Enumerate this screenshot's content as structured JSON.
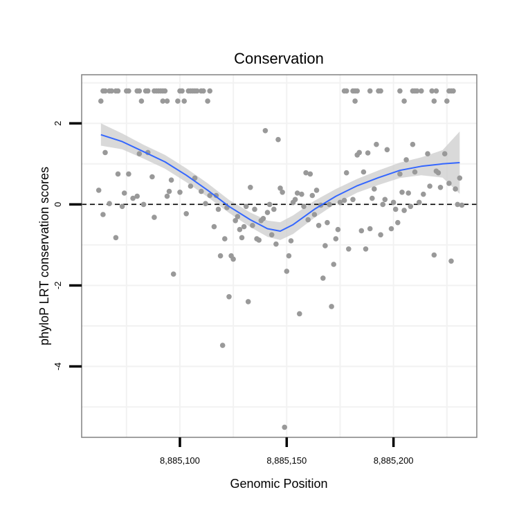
{
  "colors": {
    "points": "#999999",
    "smooth_line": "#3366FF",
    "ribbon": "#CCCCCC",
    "grid": "#F2F2F2",
    "panel_border": "#808080",
    "reference_line": "#000000"
  },
  "chart_data": {
    "type": "scatter",
    "title": "Conservation",
    "xlabel": "Genomic Position",
    "ylabel": "phyloP LRT conservation scores",
    "xlim": [
      8885054,
      8885239
    ],
    "ylim": [
      -5.75,
      3.2
    ],
    "x_ticks": [
      {
        "value": 8885100,
        "label": "8,885,100"
      },
      {
        "value": 8885150,
        "label": "8,885,150"
      },
      {
        "value": 8885200,
        "label": "8,885,200"
      }
    ],
    "y_ticks": [
      {
        "value": 2,
        "label": "2"
      },
      {
        "value": 0,
        "label": "0"
      },
      {
        "value": -2,
        "label": "-2"
      },
      {
        "value": -4,
        "label": "-4"
      }
    ],
    "reference_line": {
      "y": 0,
      "style": "dashed"
    },
    "smooth": {
      "x": [
        8885063,
        8885073,
        8885083,
        8885093,
        8885103,
        8885113,
        8885123,
        8885133,
        8885141,
        8885147,
        8885153,
        8885163,
        8885173,
        8885183,
        8885193,
        8885203,
        8885213,
        8885223,
        8885231
      ],
      "y": [
        1.72,
        1.55,
        1.3,
        1.05,
        0.72,
        0.35,
        -0.05,
        -0.38,
        -0.6,
        -0.66,
        -0.5,
        -0.12,
        0.2,
        0.46,
        0.66,
        0.84,
        0.94,
        1.0,
        1.03
      ],
      "lower": [
        1.45,
        1.36,
        1.13,
        0.88,
        0.55,
        0.18,
        -0.21,
        -0.56,
        -0.8,
        -0.88,
        -0.73,
        -0.33,
        0.02,
        0.29,
        0.48,
        0.65,
        0.72,
        0.66,
        0.26
      ],
      "upper": [
        2.0,
        1.75,
        1.47,
        1.22,
        0.89,
        0.52,
        0.11,
        -0.2,
        -0.4,
        -0.44,
        -0.27,
        0.09,
        0.38,
        0.63,
        0.84,
        1.03,
        1.16,
        1.34,
        1.8
      ]
    },
    "points": [
      [
        8885064,
        2.8
      ],
      [
        8885065,
        2.8
      ],
      [
        8885067,
        2.8
      ],
      [
        8885068,
        2.8
      ],
      [
        8885070,
        2.8
      ],
      [
        8885071,
        2.8
      ],
      [
        8885075,
        2.8
      ],
      [
        8885076,
        2.8
      ],
      [
        8885080,
        2.8
      ],
      [
        8885081,
        2.8
      ],
      [
        8885084,
        2.8
      ],
      [
        8885085,
        2.8
      ],
      [
        8885088,
        2.8
      ],
      [
        8885089,
        2.8
      ],
      [
        8885090,
        2.8
      ],
      [
        8885091,
        2.8
      ],
      [
        8885092,
        2.8
      ],
      [
        8885093,
        2.8
      ],
      [
        8885100,
        2.8
      ],
      [
        8885101,
        2.8
      ],
      [
        8885104,
        2.8
      ],
      [
        8885105,
        2.8
      ],
      [
        8885106,
        2.8
      ],
      [
        8885107,
        2.8
      ],
      [
        8885108,
        2.8
      ],
      [
        8885110,
        2.8
      ],
      [
        8885111,
        2.8
      ],
      [
        8885114,
        2.8
      ],
      [
        8885063,
        2.55
      ],
      [
        8885082,
        2.55
      ],
      [
        8885092,
        2.55
      ],
      [
        8885094,
        2.55
      ],
      [
        8885099,
        2.55
      ],
      [
        8885102,
        2.55
      ],
      [
        8885113,
        2.55
      ],
      [
        8885062,
        0.35
      ],
      [
        8885064,
        -0.25
      ],
      [
        8885065,
        1.28
      ],
      [
        8885067,
        0.02
      ],
      [
        8885070,
        -0.82
      ],
      [
        8885071,
        0.75
      ],
      [
        8885073,
        -0.05
      ],
      [
        8885074,
        0.28
      ],
      [
        8885076,
        0.75
      ],
      [
        8885078,
        0.15
      ],
      [
        8885080,
        0.2
      ],
      [
        8885081,
        1.25
      ],
      [
        8885083,
        0.0
      ],
      [
        8885085,
        1.28
      ],
      [
        8885087,
        0.68
      ],
      [
        8885088,
        -0.32
      ],
      [
        8885094,
        0.2
      ],
      [
        8885095,
        0.32
      ],
      [
        8885096,
        0.6
      ],
      [
        8885097,
        -1.72
      ],
      [
        8885100,
        0.3
      ],
      [
        8885103,
        -0.23
      ],
      [
        8885105,
        0.45
      ],
      [
        8885107,
        0.65
      ],
      [
        8885110,
        0.32
      ],
      [
        8885112,
        0.02
      ],
      [
        8885114,
        0.22
      ],
      [
        8885116,
        -0.55
      ],
      [
        8885117,
        0.22
      ],
      [
        8885118,
        -0.12
      ],
      [
        8885119,
        -1.27
      ],
      [
        8885120,
        -3.48
      ],
      [
        8885121,
        -0.85
      ],
      [
        8885122,
        -0.08
      ],
      [
        8885123,
        -2.28
      ],
      [
        8885124,
        -1.27
      ],
      [
        8885125,
        -1.35
      ],
      [
        8885126,
        -0.4
      ],
      [
        8885127,
        -0.3
      ],
      [
        8885128,
        -0.62
      ],
      [
        8885129,
        -0.82
      ],
      [
        8885130,
        -0.55
      ],
      [
        8885131,
        -0.05
      ],
      [
        8885132,
        -2.4
      ],
      [
        8885133,
        0.42
      ],
      [
        8885134,
        -0.52
      ],
      [
        8885135,
        -0.12
      ],
      [
        8885136,
        -0.85
      ],
      [
        8885137,
        -0.88
      ],
      [
        8885138,
        -0.4
      ],
      [
        8885139,
        -0.35
      ],
      [
        8885140,
        1.82
      ],
      [
        8885141,
        -0.2
      ],
      [
        8885142,
        0.0
      ],
      [
        8885143,
        -0.75
      ],
      [
        8885144,
        -0.12
      ],
      [
        8885145,
        -0.98
      ],
      [
        8885146,
        1.6
      ],
      [
        8885147,
        0.4
      ],
      [
        8885148,
        0.3
      ],
      [
        8885149,
        -5.5
      ],
      [
        8885150,
        -1.65
      ],
      [
        8885151,
        -1.27
      ],
      [
        8885152,
        -0.9
      ],
      [
        8885153,
        0.05
      ],
      [
        8885154,
        0.12
      ],
      [
        8885155,
        0.28
      ],
      [
        8885156,
        -2.7
      ],
      [
        8885157,
        0.25
      ],
      [
        8885158,
        -0.05
      ],
      [
        8885159,
        0.78
      ],
      [
        8885160,
        -0.38
      ],
      [
        8885161,
        0.75
      ],
      [
        8885162,
        0.22
      ],
      [
        8885163,
        -0.25
      ],
      [
        8885164,
        0.35
      ],
      [
        8885165,
        -0.52
      ],
      [
        8885166,
        -0.02
      ],
      [
        8885167,
        -1.82
      ],
      [
        8885168,
        -1.02
      ],
      [
        8885169,
        -0.45
      ],
      [
        8885170,
        0.0
      ],
      [
        8885171,
        -2.52
      ],
      [
        8885172,
        -1.48
      ],
      [
        8885173,
        -0.85
      ],
      [
        8885174,
        -0.62
      ],
      [
        8885175,
        0.05
      ],
      [
        8885177,
        0.1
      ],
      [
        8885178,
        0.78
      ],
      [
        8885179,
        -1.1
      ],
      [
        8885181,
        0.12
      ],
      [
        8885183,
        1.22
      ],
      [
        8885184,
        1.28
      ],
      [
        8885185,
        -0.65
      ],
      [
        8885186,
        0.8
      ],
      [
        8885187,
        -1.1
      ],
      [
        8885188,
        1.27
      ],
      [
        8885189,
        -0.6
      ],
      [
        8885190,
        0.15
      ],
      [
        8885191,
        0.38
      ],
      [
        8885192,
        1.48
      ],
      [
        8885194,
        -0.75
      ],
      [
        8885195,
        0.0
      ],
      [
        8885196,
        0.12
      ],
      [
        8885197,
        1.35
      ],
      [
        8885199,
        -0.6
      ],
      [
        8885200,
        0.05
      ],
      [
        8885201,
        -0.12
      ],
      [
        8885202,
        -0.45
      ],
      [
        8885203,
        0.75
      ],
      [
        8885204,
        0.3
      ],
      [
        8885205,
        -0.15
      ],
      [
        8885206,
        1.1
      ],
      [
        8885207,
        0.28
      ],
      [
        8885208,
        -0.05
      ],
      [
        8885209,
        1.48
      ],
      [
        8885210,
        0.8
      ],
      [
        8885212,
        0.05
      ],
      [
        8885214,
        0.25
      ],
      [
        8885216,
        1.25
      ],
      [
        8885217,
        0.45
      ],
      [
        8885219,
        -1.25
      ],
      [
        8885220,
        0.82
      ],
      [
        8885221,
        0.78
      ],
      [
        8885222,
        0.42
      ],
      [
        8885224,
        1.25
      ],
      [
        8885226,
        0.52
      ],
      [
        8885227,
        -1.4
      ],
      [
        8885229,
        0.38
      ],
      [
        8885230,
        0.0
      ],
      [
        8885231,
        0.65
      ],
      [
        8885232,
        -0.02
      ],
      [
        8885177,
        2.8
      ],
      [
        8885178,
        2.8
      ],
      [
        8885181,
        2.8
      ],
      [
        8885182,
        2.8
      ],
      [
        8885183,
        2.8
      ],
      [
        8885189,
        2.8
      ],
      [
        8885193,
        2.8
      ],
      [
        8885194,
        2.8
      ],
      [
        8885203,
        2.8
      ],
      [
        8885209,
        2.8
      ],
      [
        8885210,
        2.8
      ],
      [
        8885211,
        2.8
      ],
      [
        8885213,
        2.8
      ],
      [
        8885218,
        2.8
      ],
      [
        8885220,
        2.8
      ],
      [
        8885226,
        2.8
      ],
      [
        8885227,
        2.8
      ],
      [
        8885228,
        2.8
      ],
      [
        8885182,
        2.55
      ],
      [
        8885205,
        2.55
      ],
      [
        8885219,
        2.55
      ],
      [
        8885225,
        2.55
      ]
    ]
  }
}
